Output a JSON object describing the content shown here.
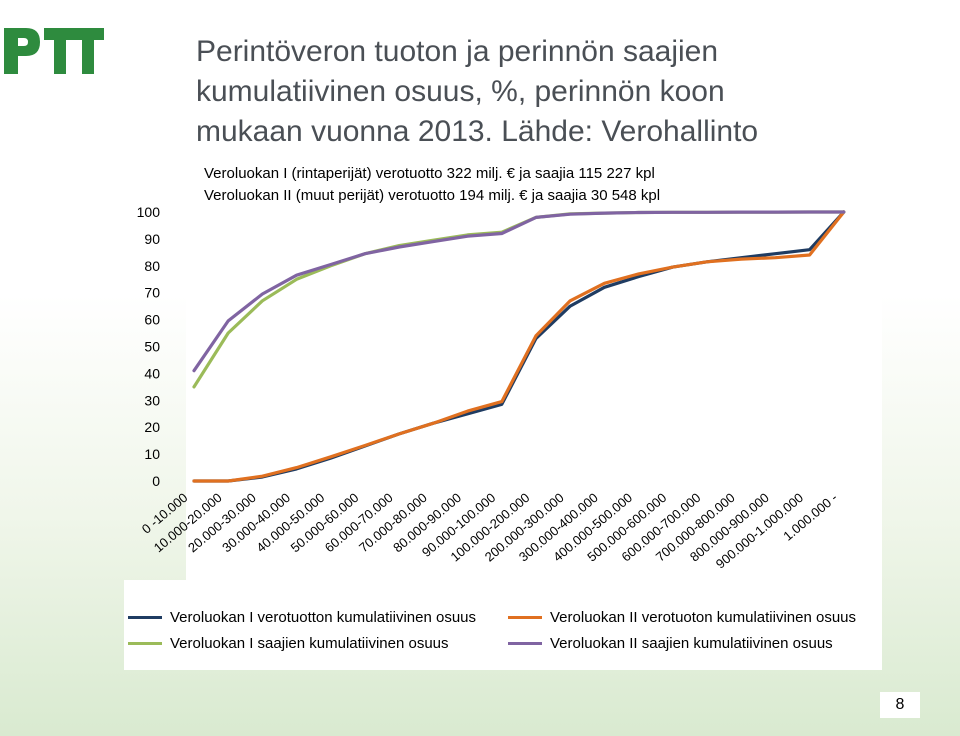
{
  "slide": {
    "title": "Perintöveron tuoton ja perinnön saajien kumulatiivinen osuus, %, perinnön koon mukaan vuonna 2013. Lähde: Verohallinto",
    "page_number": "8"
  },
  "colors": {
    "vl1_tax": "#1f3c62",
    "vl2_tax": "#e07020",
    "vl1_recipients": "#9bbb59",
    "vl2_recipients": "#8064a2",
    "logo": "#2e8b3e"
  },
  "chart_data": {
    "type": "line",
    "annotations": [
      "Veroluokan I (rintaperijät) verotuotto 322 milj. € ja saajia 115 227 kpl",
      "Veroluokan II (muut perijät) verotuotto 194 milj. € ja saajia 30 548 kpl"
    ],
    "categories": [
      "0 -10.000",
      "10.000-20.000",
      "20.000-30.000",
      "30.000-40.000",
      "40.000-50.000",
      "50.000-60.000",
      "60.000-70.000",
      "70.000-80.000",
      "80.000-90.000",
      "90.000-100.000",
      "100.000-200.000",
      "200.000-300.000",
      "300.000-400.000",
      "400.000-500.000",
      "500.000-600.000",
      "600.000-700.000",
      "700.000-800.000",
      "800.000-900.000",
      "900.000-1.000.000",
      "1.000.000 -"
    ],
    "ylim": [
      0,
      100
    ],
    "yticks": [
      0,
      10,
      20,
      30,
      40,
      50,
      60,
      70,
      80,
      90,
      100
    ],
    "grid": false,
    "legend_position": "bottom",
    "series": [
      {
        "name": "Veroluokan I verotuotton kumulatiivinen osuus",
        "color_key": "vl1_tax",
        "values": [
          0,
          0,
          1.5,
          4.5,
          8.5,
          13,
          17.5,
          21.5,
          25,
          28.5,
          53,
          65,
          72,
          76,
          79.5,
          81.5,
          83,
          84.5,
          86,
          100
        ]
      },
      {
        "name": "Veroluokan II verotuoton kumulatiivinen osuus",
        "color_key": "vl2_tax",
        "values": [
          0,
          0,
          1.8,
          5,
          9,
          13.2,
          17.5,
          21.5,
          26,
          29.5,
          54,
          67,
          73.5,
          77,
          79.5,
          81.5,
          82.5,
          83,
          84,
          100
        ]
      },
      {
        "name": "Veroluokan I saajien kumulatiivinen osuus",
        "color_key": "vl1_recipients",
        "values": [
          35,
          55,
          67,
          75,
          80,
          84.5,
          87.5,
          89.5,
          91.5,
          92.5,
          98,
          99.3,
          99.6,
          99.8,
          99.9,
          99.9,
          99.95,
          99.98,
          99.99,
          100
        ]
      },
      {
        "name": "Veroluokan II saajien kumulatiivinen osuus",
        "color_key": "vl2_recipients",
        "values": [
          41,
          59.5,
          69.5,
          76.5,
          80.5,
          84.5,
          87,
          89,
          91,
          92,
          98,
          99.2,
          99.6,
          99.8,
          99.9,
          99.9,
          99.95,
          99.98,
          99.99,
          100
        ]
      }
    ]
  }
}
